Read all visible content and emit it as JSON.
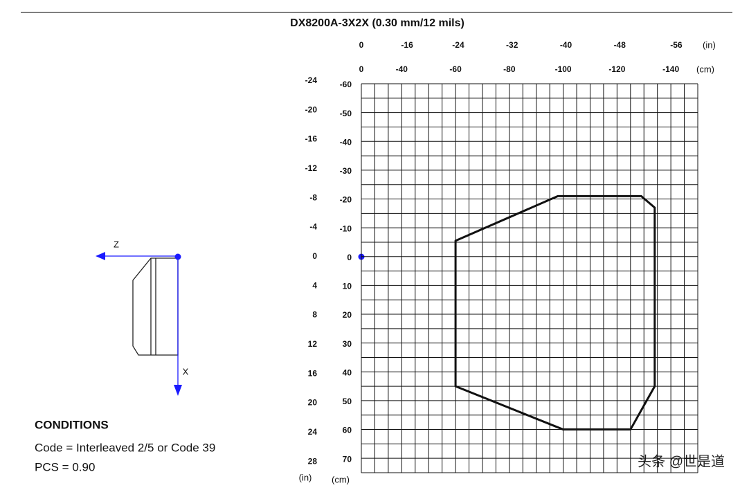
{
  "chart_data": {
    "type": "line",
    "title": "DX8200A-3X2X (0.30 mm/12 mils)",
    "x_unit_in": "(in)",
    "x_unit_cm": "(cm)",
    "y_unit_in": "(in)",
    "y_unit_cm": "(cm)",
    "xlim": [
      0,
      -125
    ],
    "xticks": [
      0,
      {
        "value": -15,
        "label": "-40"
      },
      {
        "value": -35,
        "label": "-60"
      },
      {
        "value": -55,
        "label": "-80"
      },
      {
        "value": -75,
        "label": "-100"
      },
      {
        "value": -95,
        "label": "-120"
      },
      {
        "value": -115,
        "label": "-140"
      }
    ],
    "x2ticks": [
      0,
      {
        "value": -17,
        "label": "-16"
      },
      {
        "value": -36,
        "label": "-24"
      },
      {
        "value": -56,
        "label": "-32"
      },
      {
        "value": -76,
        "label": "-40"
      },
      {
        "value": -96,
        "label": "-48"
      },
      {
        "value": -117,
        "label": "-56"
      }
    ],
    "ylim": [
      -60,
      75
    ],
    "yticks": [
      -60,
      -50,
      -40,
      -30,
      -20,
      -10,
      0,
      10,
      20,
      30,
      40,
      50,
      60,
      70
    ],
    "y2lim": [
      -23.6,
      29.5
    ],
    "y2ticks": [
      -24,
      -20,
      -16,
      -12,
      -8,
      -4,
      0,
      4,
      8,
      12,
      16,
      20,
      24,
      28
    ],
    "x": [
      -35,
      -73,
      -104,
      -109,
      -109,
      -100,
      -75,
      -35
    ],
    "values": [
      -5.5,
      -21,
      -21,
      -17,
      45,
      60,
      60,
      45
    ],
    "color": "#111111",
    "sensor_z": "Z",
    "sensor_x": "X",
    "conditions_title": "CONDITIONS",
    "conditions": [
      "Code = Interleaved 2/5 or Code 39",
      "PCS = 0.90"
    ],
    "watermark": "头条 @世是道"
  }
}
